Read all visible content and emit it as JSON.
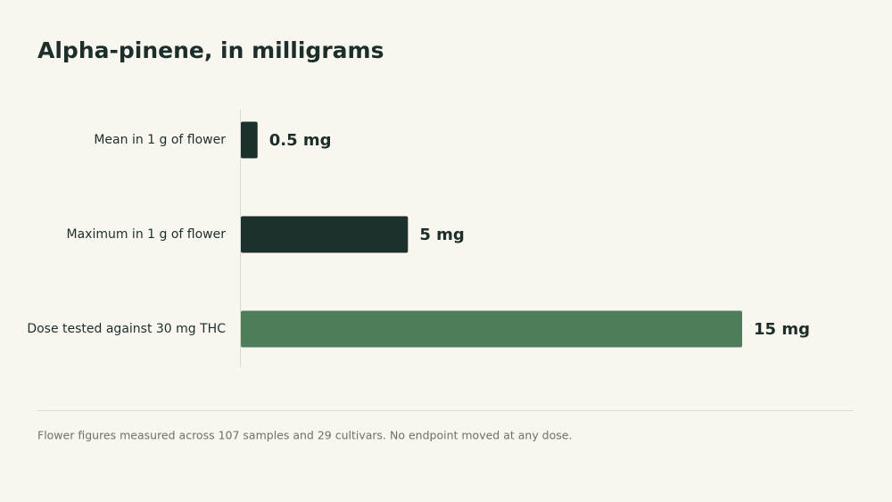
{
  "chart_data": {
    "type": "bar",
    "orientation": "horizontal",
    "title": "Alpha-pinene, in milligrams",
    "categories": [
      "Mean in 1 g of flower",
      "Maximum in 1 g of flower",
      "Dose tested against 30 mg THC"
    ],
    "values": [
      0.5,
      5,
      15
    ],
    "value_labels": [
      "0.5 mg",
      "5 mg",
      "15 mg"
    ],
    "colors": [
      "#1c302c",
      "#1c302c",
      "#4e7d5c"
    ],
    "footnote": "Flower figures measured across 107 samples and 29 cultivars. No endpoint moved at any dose."
  }
}
